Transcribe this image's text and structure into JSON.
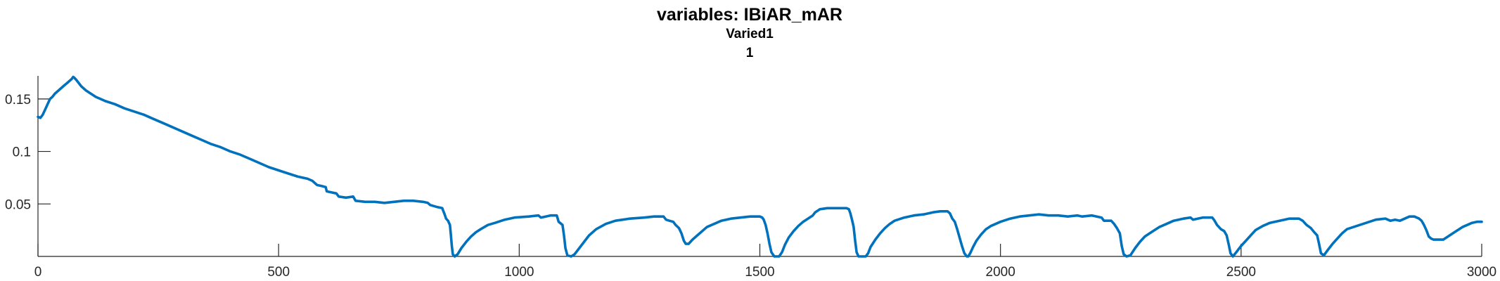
{
  "chart_data": {
    "type": "line",
    "title": "variables: IBiAR_mAR",
    "subtitle_lines": [
      "Varied1",
      "1"
    ],
    "xlabel": "",
    "ylabel": "",
    "xlim": [
      0,
      3000
    ],
    "ylim": [
      0,
      0.172
    ],
    "x_ticks": [
      0,
      500,
      1000,
      1500,
      2000,
      2500,
      3000
    ],
    "x_tick_labels": [
      "0",
      "500",
      "1000",
      "1500",
      "2000",
      "2500",
      "3000"
    ],
    "y_ticks": [
      0.05,
      0.1,
      0.15
    ],
    "y_tick_labels": [
      "0.05",
      "0.1",
      "0.15"
    ],
    "grid": false,
    "legend": "none",
    "series": [
      {
        "color": "#0072BD",
        "points": [
          [
            0,
            0.133
          ],
          [
            5,
            0.132
          ],
          [
            10,
            0.135
          ],
          [
            15,
            0.14
          ],
          [
            20,
            0.145
          ],
          [
            25,
            0.15
          ],
          [
            30,
            0.152
          ],
          [
            35,
            0.155
          ],
          [
            40,
            0.157
          ],
          [
            45,
            0.159
          ],
          [
            50,
            0.161
          ],
          [
            55,
            0.163
          ],
          [
            60,
            0.165
          ],
          [
            65,
            0.167
          ],
          [
            70,
            0.169
          ],
          [
            73,
            0.171
          ],
          [
            76,
            0.17
          ],
          [
            80,
            0.168
          ],
          [
            85,
            0.165
          ],
          [
            90,
            0.162
          ],
          [
            95,
            0.16
          ],
          [
            100,
            0.158
          ],
          [
            110,
            0.155
          ],
          [
            120,
            0.152
          ],
          [
            130,
            0.15
          ],
          [
            140,
            0.148
          ],
          [
            160,
            0.145
          ],
          [
            180,
            0.141
          ],
          [
            200,
            0.138
          ],
          [
            220,
            0.135
          ],
          [
            240,
            0.131
          ],
          [
            260,
            0.127
          ],
          [
            280,
            0.123
          ],
          [
            300,
            0.119
          ],
          [
            320,
            0.115
          ],
          [
            340,
            0.111
          ],
          [
            360,
            0.107
          ],
          [
            380,
            0.104
          ],
          [
            400,
            0.1
          ],
          [
            420,
            0.097
          ],
          [
            440,
            0.093
          ],
          [
            460,
            0.089
          ],
          [
            480,
            0.085
          ],
          [
            500,
            0.082
          ],
          [
            520,
            0.079
          ],
          [
            540,
            0.076
          ],
          [
            560,
            0.074
          ],
          [
            570,
            0.072
          ],
          [
            575,
            0.07
          ],
          [
            580,
            0.068
          ],
          [
            590,
            0.067
          ],
          [
            598,
            0.066
          ],
          [
            600,
            0.062
          ],
          [
            610,
            0.061
          ],
          [
            620,
            0.06
          ],
          [
            625,
            0.057
          ],
          [
            640,
            0.056
          ],
          [
            655,
            0.057
          ],
          [
            660,
            0.053
          ],
          [
            680,
            0.052
          ],
          [
            700,
            0.052
          ],
          [
            720,
            0.051
          ],
          [
            740,
            0.052
          ],
          [
            760,
            0.053
          ],
          [
            780,
            0.053
          ],
          [
            800,
            0.052
          ],
          [
            810,
            0.051
          ],
          [
            815,
            0.049
          ],
          [
            830,
            0.047
          ],
          [
            840,
            0.046
          ],
          [
            845,
            0.04
          ],
          [
            848,
            0.036
          ],
          [
            852,
            0.034
          ],
          [
            856,
            0.03
          ],
          [
            858,
            0.02
          ],
          [
            860,
            0.01
          ],
          [
            862,
            0.002
          ],
          [
            866,
            0.0
          ],
          [
            872,
            0.002
          ],
          [
            880,
            0.008
          ],
          [
            890,
            0.014
          ],
          [
            900,
            0.019
          ],
          [
            910,
            0.023
          ],
          [
            920,
            0.026
          ],
          [
            935,
            0.03
          ],
          [
            950,
            0.032
          ],
          [
            970,
            0.035
          ],
          [
            990,
            0.037
          ],
          [
            1020,
            0.038
          ],
          [
            1040,
            0.039
          ],
          [
            1045,
            0.037
          ],
          [
            1055,
            0.038
          ],
          [
            1065,
            0.039
          ],
          [
            1078,
            0.039
          ],
          [
            1082,
            0.033
          ],
          [
            1090,
            0.03
          ],
          [
            1093,
            0.02
          ],
          [
            1096,
            0.008
          ],
          [
            1100,
            0.001
          ],
          [
            1108,
            0.0
          ],
          [
            1115,
            0.002
          ],
          [
            1125,
            0.008
          ],
          [
            1135,
            0.014
          ],
          [
            1145,
            0.02
          ],
          [
            1160,
            0.026
          ],
          [
            1180,
            0.031
          ],
          [
            1200,
            0.034
          ],
          [
            1230,
            0.036
          ],
          [
            1260,
            0.037
          ],
          [
            1280,
            0.038
          ],
          [
            1300,
            0.038
          ],
          [
            1305,
            0.035
          ],
          [
            1312,
            0.034
          ],
          [
            1320,
            0.033
          ],
          [
            1325,
            0.03
          ],
          [
            1332,
            0.027
          ],
          [
            1337,
            0.022
          ],
          [
            1342,
            0.015
          ],
          [
            1346,
            0.012
          ],
          [
            1352,
            0.012
          ],
          [
            1360,
            0.016
          ],
          [
            1370,
            0.02
          ],
          [
            1380,
            0.024
          ],
          [
            1390,
            0.028
          ],
          [
            1405,
            0.031
          ],
          [
            1420,
            0.034
          ],
          [
            1440,
            0.036
          ],
          [
            1460,
            0.037
          ],
          [
            1480,
            0.038
          ],
          [
            1500,
            0.038
          ],
          [
            1505,
            0.037
          ],
          [
            1508,
            0.035
          ],
          [
            1512,
            0.03
          ],
          [
            1516,
            0.022
          ],
          [
            1520,
            0.012
          ],
          [
            1524,
            0.004
          ],
          [
            1530,
            0.0
          ],
          [
            1540,
            0.0
          ],
          [
            1546,
            0.004
          ],
          [
            1552,
            0.011
          ],
          [
            1560,
            0.018
          ],
          [
            1570,
            0.024
          ],
          [
            1580,
            0.029
          ],
          [
            1590,
            0.033
          ],
          [
            1600,
            0.036
          ],
          [
            1610,
            0.039
          ],
          [
            1615,
            0.042
          ],
          [
            1625,
            0.045
          ],
          [
            1640,
            0.046
          ],
          [
            1660,
            0.046
          ],
          [
            1680,
            0.046
          ],
          [
            1685,
            0.045
          ],
          [
            1688,
            0.041
          ],
          [
            1692,
            0.034
          ],
          [
            1695,
            0.028
          ],
          [
            1698,
            0.015
          ],
          [
            1701,
            0.004
          ],
          [
            1705,
            0.0
          ],
          [
            1720,
            0.0
          ],
          [
            1725,
            0.003
          ],
          [
            1730,
            0.009
          ],
          [
            1740,
            0.016
          ],
          [
            1750,
            0.022
          ],
          [
            1760,
            0.027
          ],
          [
            1770,
            0.031
          ],
          [
            1780,
            0.034
          ],
          [
            1800,
            0.037
          ],
          [
            1820,
            0.039
          ],
          [
            1840,
            0.04
          ],
          [
            1860,
            0.042
          ],
          [
            1875,
            0.043
          ],
          [
            1890,
            0.043
          ],
          [
            1895,
            0.041
          ],
          [
            1900,
            0.036
          ],
          [
            1905,
            0.033
          ],
          [
            1910,
            0.026
          ],
          [
            1915,
            0.018
          ],
          [
            1920,
            0.01
          ],
          [
            1925,
            0.003
          ],
          [
            1930,
            0.0
          ],
          [
            1933,
            0.0
          ],
          [
            1937,
            0.003
          ],
          [
            1943,
            0.009
          ],
          [
            1950,
            0.015
          ],
          [
            1960,
            0.021
          ],
          [
            1970,
            0.026
          ],
          [
            1980,
            0.029
          ],
          [
            2000,
            0.033
          ],
          [
            2020,
            0.036
          ],
          [
            2040,
            0.038
          ],
          [
            2060,
            0.039
          ],
          [
            2080,
            0.04
          ],
          [
            2100,
            0.039
          ],
          [
            2120,
            0.039
          ],
          [
            2140,
            0.038
          ],
          [
            2160,
            0.039
          ],
          [
            2170,
            0.038
          ],
          [
            2190,
            0.039
          ],
          [
            2210,
            0.037
          ],
          [
            2215,
            0.034
          ],
          [
            2230,
            0.034
          ],
          [
            2236,
            0.031
          ],
          [
            2242,
            0.027
          ],
          [
            2248,
            0.022
          ],
          [
            2252,
            0.01
          ],
          [
            2256,
            0.002
          ],
          [
            2262,
            0.0
          ],
          [
            2270,
            0.001
          ],
          [
            2280,
            0.008
          ],
          [
            2290,
            0.014
          ],
          [
            2300,
            0.019
          ],
          [
            2310,
            0.022
          ],
          [
            2320,
            0.025
          ],
          [
            2330,
            0.028
          ],
          [
            2345,
            0.031
          ],
          [
            2360,
            0.034
          ],
          [
            2380,
            0.036
          ],
          [
            2395,
            0.037
          ],
          [
            2400,
            0.035
          ],
          [
            2410,
            0.036
          ],
          [
            2420,
            0.037
          ],
          [
            2440,
            0.037
          ],
          [
            2445,
            0.034
          ],
          [
            2450,
            0.03
          ],
          [
            2458,
            0.026
          ],
          [
            2465,
            0.024
          ],
          [
            2470,
            0.02
          ],
          [
            2475,
            0.01
          ],
          [
            2478,
            0.003
          ],
          [
            2483,
            0.0
          ],
          [
            2490,
            0.004
          ],
          [
            2500,
            0.01
          ],
          [
            2510,
            0.015
          ],
          [
            2520,
            0.02
          ],
          [
            2530,
            0.025
          ],
          [
            2545,
            0.029
          ],
          [
            2560,
            0.032
          ],
          [
            2580,
            0.034
          ],
          [
            2600,
            0.036
          ],
          [
            2620,
            0.036
          ],
          [
            2628,
            0.034
          ],
          [
            2636,
            0.03
          ],
          [
            2645,
            0.027
          ],
          [
            2652,
            0.023
          ],
          [
            2658,
            0.02
          ],
          [
            2662,
            0.012
          ],
          [
            2666,
            0.003
          ],
          [
            2672,
            0.001
          ],
          [
            2680,
            0.006
          ],
          [
            2690,
            0.012
          ],
          [
            2700,
            0.017
          ],
          [
            2710,
            0.022
          ],
          [
            2720,
            0.026
          ],
          [
            2740,
            0.029
          ],
          [
            2760,
            0.032
          ],
          [
            2780,
            0.035
          ],
          [
            2800,
            0.036
          ],
          [
            2810,
            0.034
          ],
          [
            2820,
            0.035
          ],
          [
            2830,
            0.034
          ],
          [
            2840,
            0.036
          ],
          [
            2850,
            0.038
          ],
          [
            2860,
            0.038
          ],
          [
            2870,
            0.036
          ],
          [
            2875,
            0.034
          ],
          [
            2880,
            0.03
          ],
          [
            2885,
            0.025
          ],
          [
            2890,
            0.019
          ],
          [
            2895,
            0.017
          ],
          [
            2900,
            0.016
          ],
          [
            2910,
            0.016
          ],
          [
            2920,
            0.016
          ],
          [
            2930,
            0.019
          ],
          [
            2940,
            0.022
          ],
          [
            2950,
            0.025
          ],
          [
            2960,
            0.028
          ],
          [
            2970,
            0.03
          ],
          [
            2980,
            0.032
          ],
          [
            2990,
            0.033
          ],
          [
            3000,
            0.033
          ]
        ]
      }
    ]
  }
}
